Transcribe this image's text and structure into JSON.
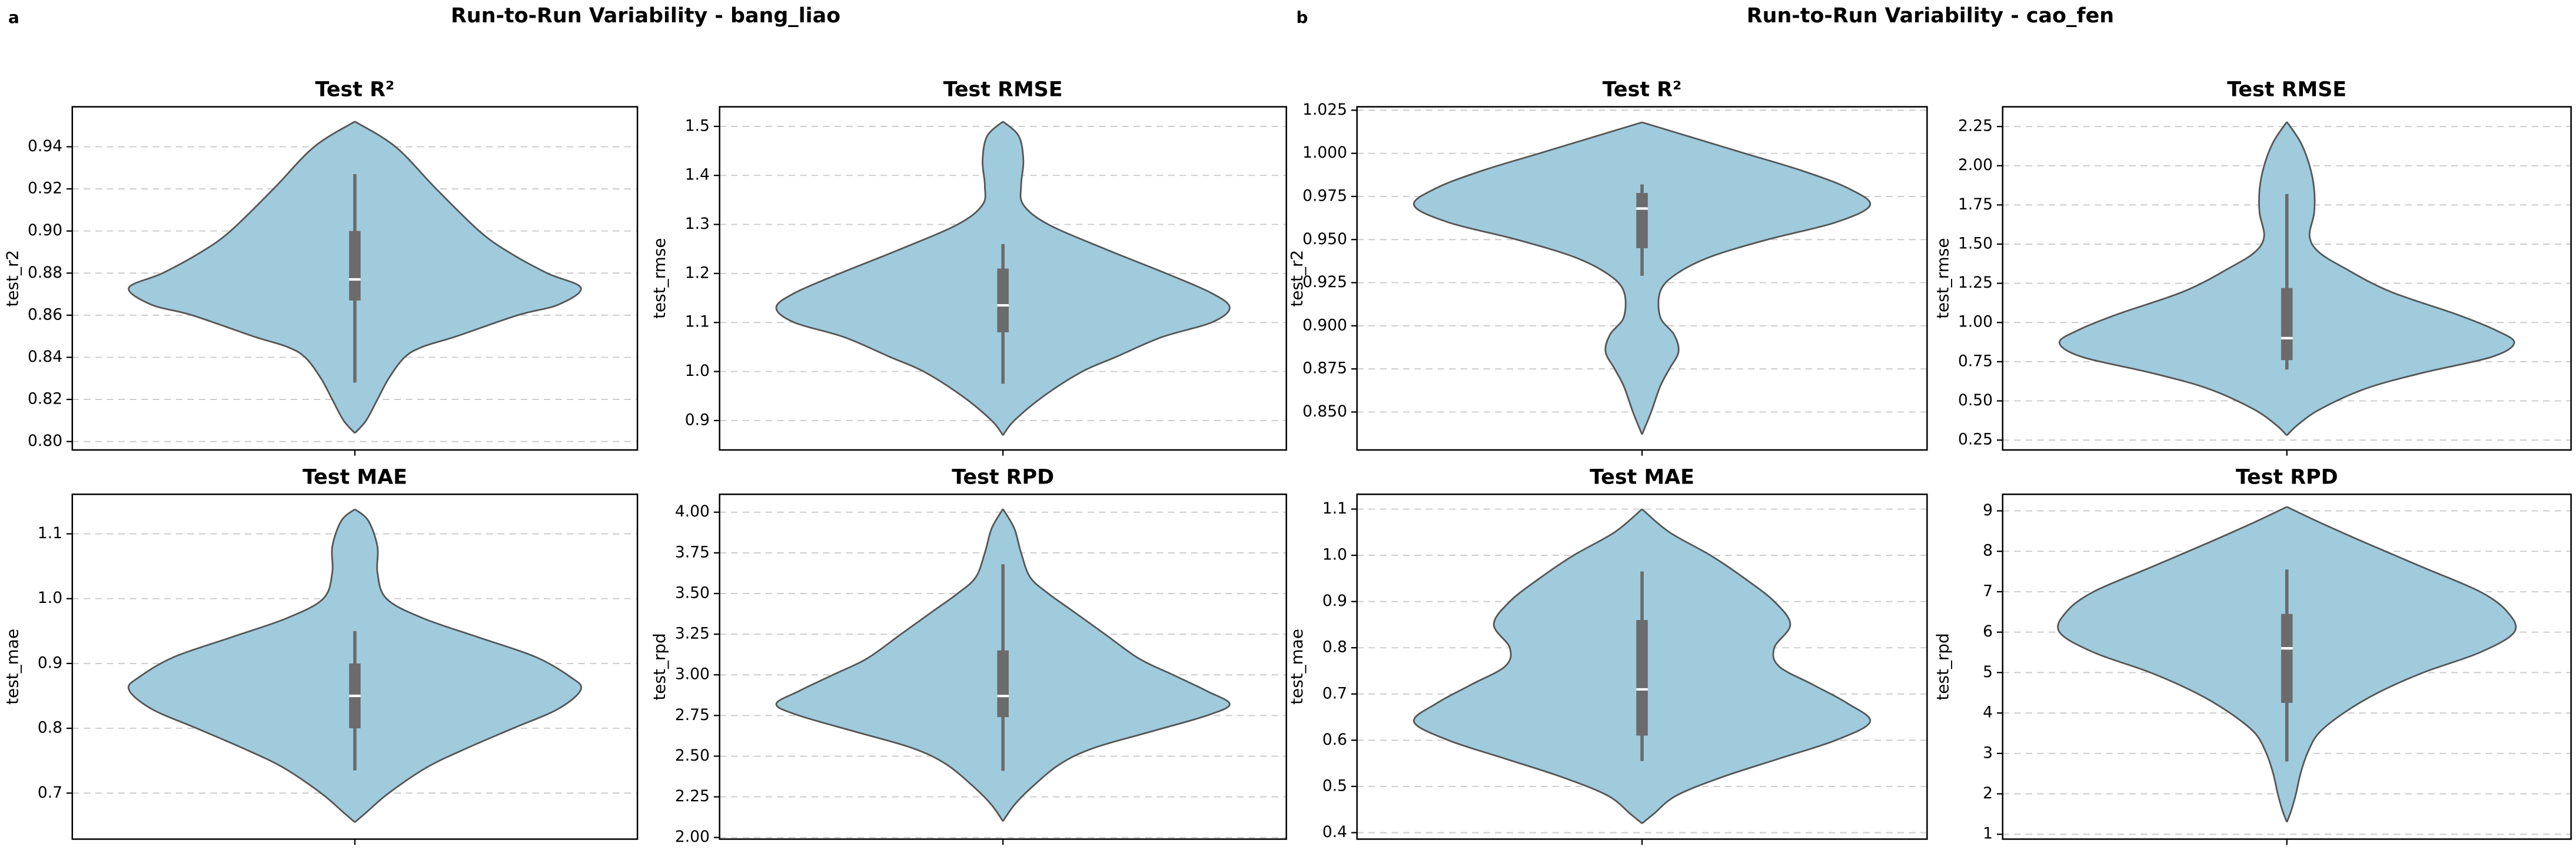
{
  "figure": {
    "panels": [
      {
        "label": "a",
        "title": "Run-to-Run Variability - bang_liao"
      },
      {
        "label": "b",
        "title": "Run-to-Run Variability - cao_fen"
      }
    ]
  },
  "chart_data": [
    {
      "type": "violin",
      "title": "Test R²",
      "ylabel": "test_r2",
      "color": "#9fcbdc",
      "grid": true,
      "ylim": [
        0.796,
        0.959
      ],
      "yticks": [
        {
          "value": 0.8,
          "label": "0.80"
        },
        0.82,
        0.84,
        0.86,
        0.88,
        {
          "value": 0.9,
          "label": "0.90"
        },
        0.92,
        0.94
      ],
      "y": [
        0.952,
        0.94,
        0.92,
        0.9,
        0.89,
        0.88,
        0.873,
        0.865,
        0.86,
        0.85,
        0.845,
        0.84,
        0.83,
        0.82,
        0.81,
        0.804
      ],
      "density": [
        0,
        0.18,
        0.36,
        0.55,
        0.68,
        0.85,
        1.0,
        0.9,
        0.72,
        0.45,
        0.3,
        0.22,
        0.15,
        0.1,
        0.05,
        0
      ],
      "box": {
        "whislo": 0.828,
        "q1": 0.867,
        "med": 0.877,
        "q3": 0.9,
        "whishi": 0.927
      }
    },
    {
      "type": "violin",
      "title": "Test RMSE",
      "ylabel": "test_rmse",
      "color": "#9fcbdc",
      "grid": true,
      "ylim": [
        0.84,
        1.54
      ],
      "yticks": [
        0.9,
        {
          "value": 1.0,
          "label": "1.0"
        },
        1.1,
        1.2,
        1.3,
        1.4,
        1.5
      ],
      "y": [
        1.51,
        1.48,
        1.43,
        1.38,
        1.34,
        1.3,
        1.25,
        1.2,
        1.16,
        1.13,
        1.1,
        1.07,
        1.03,
        1.0,
        0.95,
        0.9,
        0.87
      ],
      "density": [
        0,
        0.07,
        0.09,
        0.08,
        0.09,
        0.2,
        0.45,
        0.72,
        0.92,
        1.0,
        0.92,
        0.7,
        0.5,
        0.35,
        0.18,
        0.05,
        0
      ],
      "box": {
        "whislo": 0.975,
        "q1": 1.08,
        "med": 1.135,
        "q3": 1.21,
        "whishi": 1.26
      }
    },
    {
      "type": "violin",
      "title": "Test MAE",
      "ylabel": "test_mae",
      "color": "#9fcbdc",
      "grid": true,
      "ylim": [
        0.629,
        1.161
      ],
      "yticks": [
        0.7,
        0.8,
        0.9,
        {
          "value": 1.0,
          "label": "1.0"
        },
        1.1
      ],
      "y": [
        1.138,
        1.12,
        1.08,
        1.04,
        1.0,
        0.97,
        0.94,
        0.91,
        0.88,
        0.86,
        0.83,
        0.8,
        0.77,
        0.74,
        0.7,
        0.67,
        0.655
      ],
      "density": [
        0,
        0.06,
        0.1,
        0.1,
        0.14,
        0.3,
        0.55,
        0.8,
        0.95,
        1.0,
        0.9,
        0.7,
        0.5,
        0.32,
        0.15,
        0.05,
        0
      ],
      "box": {
        "whislo": 0.735,
        "q1": 0.8,
        "med": 0.85,
        "q3": 0.9,
        "whishi": 0.95
      }
    },
    {
      "type": "violin",
      "title": "Test RPD",
      "ylabel": "test_rpd",
      "color": "#9fcbdc",
      "grid": true,
      "ylim": [
        1.99,
        4.11
      ],
      "yticks": [
        {
          "value": 2.0,
          "label": "2.00"
        },
        2.25,
        {
          "value": 2.5,
          "label": "2.50"
        },
        2.75,
        {
          "value": 3.0,
          "label": "3.00"
        },
        3.25,
        {
          "value": 3.5,
          "label": "3.50"
        },
        3.75,
        {
          "value": 4.0,
          "label": "4.00"
        }
      ],
      "y": [
        4.02,
        3.9,
        3.75,
        3.6,
        3.5,
        3.4,
        3.25,
        3.1,
        3.0,
        2.9,
        2.82,
        2.75,
        2.65,
        2.55,
        2.45,
        2.3,
        2.2,
        2.1
      ],
      "density": [
        0,
        0.05,
        0.08,
        0.12,
        0.2,
        0.3,
        0.45,
        0.6,
        0.75,
        0.9,
        1.0,
        0.9,
        0.65,
        0.4,
        0.25,
        0.12,
        0.05,
        0
      ],
      "box": {
        "whislo": 2.41,
        "q1": 2.74,
        "med": 2.87,
        "q3": 3.15,
        "whishi": 3.68
      }
    },
    {
      "type": "violin",
      "title": "Test R²",
      "ylabel": "test_r2",
      "color": "#9fcbdc",
      "grid": true,
      "ylim": [
        0.828,
        1.027
      ],
      "yticks": [
        {
          "value": 0.85,
          "label": "0.850"
        },
        0.875,
        {
          "value": 0.9,
          "label": "0.900"
        },
        0.925,
        {
          "value": 0.95,
          "label": "0.950"
        },
        0.975,
        {
          "value": 1.0,
          "label": "1.000"
        },
        1.025
      ],
      "y": [
        1.018,
        1.01,
        1.0,
        0.99,
        0.98,
        0.97,
        0.96,
        0.95,
        0.94,
        0.93,
        0.92,
        0.905,
        0.895,
        0.885,
        0.875,
        0.865,
        0.85,
        0.837
      ],
      "density": [
        0,
        0.2,
        0.45,
        0.7,
        0.9,
        1.0,
        0.85,
        0.55,
        0.3,
        0.15,
        0.08,
        0.08,
        0.14,
        0.16,
        0.12,
        0.08,
        0.04,
        0
      ],
      "box": {
        "whislo": 0.929,
        "q1": 0.945,
        "med": 0.968,
        "q3": 0.977,
        "whishi": 0.982
      }
    },
    {
      "type": "violin",
      "title": "Test RMSE",
      "ylabel": "test_rmse",
      "color": "#9fcbdc",
      "grid": true,
      "ylim": [
        0.187,
        2.376
      ],
      "yticks": [
        0.25,
        {
          "value": 0.5,
          "label": "0.50"
        },
        0.75,
        {
          "value": 1.0,
          "label": "1.00"
        },
        1.25,
        {
          "value": 1.5,
          "label": "1.50"
        },
        1.75,
        {
          "value": 2.0,
          "label": "2.00"
        },
        2.25
      ],
      "y": [
        2.28,
        2.15,
        2.0,
        1.85,
        1.7,
        1.55,
        1.45,
        1.35,
        1.2,
        1.05,
        0.95,
        0.87,
        0.78,
        0.68,
        0.58,
        0.45,
        0.35,
        0.28
      ],
      "density": [
        0,
        0.06,
        0.1,
        0.12,
        0.12,
        0.1,
        0.14,
        0.25,
        0.45,
        0.75,
        0.92,
        1.0,
        0.9,
        0.6,
        0.35,
        0.15,
        0.05,
        0
      ],
      "box": {
        "whislo": 0.7,
        "q1": 0.76,
        "med": 0.9,
        "q3": 1.22,
        "whishi": 1.82
      }
    },
    {
      "type": "violin",
      "title": "Test MAE",
      "ylabel": "test_mae",
      "color": "#9fcbdc",
      "grid": true,
      "ylim": [
        0.386,
        1.132
      ],
      "yticks": [
        0.4,
        0.5,
        0.6,
        0.7,
        0.8,
        0.9,
        {
          "value": 1.0,
          "label": "1.0"
        },
        1.1
      ],
      "y": [
        1.1,
        1.05,
        1.0,
        0.95,
        0.9,
        0.85,
        0.8,
        0.76,
        0.72,
        0.68,
        0.64,
        0.6,
        0.56,
        0.52,
        0.48,
        0.44,
        0.42
      ],
      "density": [
        0,
        0.12,
        0.3,
        0.45,
        0.58,
        0.65,
        0.58,
        0.6,
        0.75,
        0.9,
        1.0,
        0.85,
        0.6,
        0.35,
        0.15,
        0.05,
        0
      ],
      "box": {
        "whislo": 0.555,
        "q1": 0.61,
        "med": 0.71,
        "q3": 0.86,
        "whishi": 0.965
      }
    },
    {
      "type": "violin",
      "title": "Test RPD",
      "ylabel": "test_rpd",
      "color": "#9fcbdc",
      "grid": true,
      "ylim": [
        0.88,
        9.41
      ],
      "yticks": [
        1,
        2,
        3,
        4,
        5,
        6,
        7,
        8,
        9
      ],
      "y": [
        9.1,
        8.7,
        8.2,
        7.6,
        7.0,
        6.5,
        6.0,
        5.5,
        5.0,
        4.5,
        4.0,
        3.5,
        3.0,
        2.5,
        2.0,
        1.6,
        1.3
      ],
      "density": [
        0,
        0.15,
        0.35,
        0.6,
        0.85,
        0.97,
        1.0,
        0.85,
        0.6,
        0.4,
        0.25,
        0.14,
        0.09,
        0.06,
        0.04,
        0.02,
        0
      ],
      "box": {
        "whislo": 2.8,
        "q1": 4.25,
        "med": 5.6,
        "q3": 6.45,
        "whishi": 7.55
      }
    }
  ]
}
